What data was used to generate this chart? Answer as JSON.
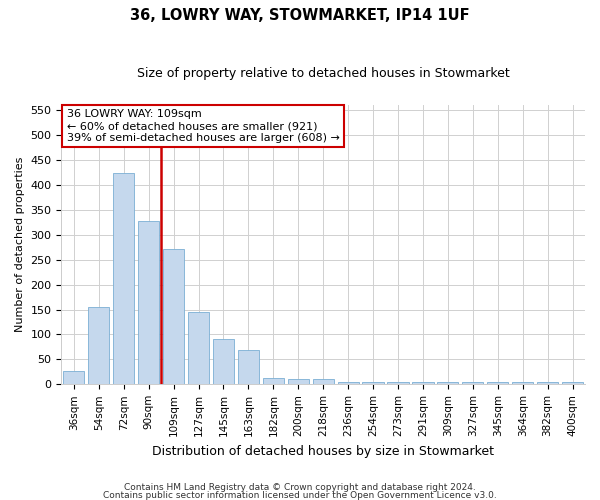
{
  "title1": "36, LOWRY WAY, STOWMARKET, IP14 1UF",
  "title2": "Size of property relative to detached houses in Stowmarket",
  "xlabel": "Distribution of detached houses by size in Stowmarket",
  "ylabel": "Number of detached properties",
  "categories": [
    "36sqm",
    "54sqm",
    "72sqm",
    "90sqm",
    "109sqm",
    "127sqm",
    "145sqm",
    "163sqm",
    "182sqm",
    "200sqm",
    "218sqm",
    "236sqm",
    "254sqm",
    "273sqm",
    "291sqm",
    "309sqm",
    "327sqm",
    "345sqm",
    "364sqm",
    "382sqm",
    "400sqm"
  ],
  "values": [
    27,
    155,
    425,
    327,
    272,
    145,
    90,
    68,
    12,
    10,
    10,
    5,
    4,
    4,
    4,
    4,
    4,
    4,
    4,
    4,
    5
  ],
  "bar_color": "#c5d8ed",
  "bar_edge_color": "#7bafd4",
  "vline_index": 3.5,
  "vline_color": "#cc0000",
  "annotation_line1": "36 LOWRY WAY: 109sqm",
  "annotation_line2": "← 60% of detached houses are smaller (921)",
  "annotation_line3": "39% of semi-detached houses are larger (608) →",
  "annotation_box_color": "#ffffff",
  "annotation_box_edge": "#cc0000",
  "footer1": "Contains HM Land Registry data © Crown copyright and database right 2024.",
  "footer2": "Contains public sector information licensed under the Open Government Licence v3.0.",
  "ylim": [
    0,
    560
  ],
  "yticks": [
    0,
    50,
    100,
    150,
    200,
    250,
    300,
    350,
    400,
    450,
    500,
    550
  ],
  "background_color": "#ffffff",
  "grid_color": "#d0d0d0",
  "title1_fontsize": 10.5,
  "title2_fontsize": 9,
  "ylabel_fontsize": 8,
  "xlabel_fontsize": 9,
  "tick_fontsize": 7.5,
  "ytick_fontsize": 8,
  "annotation_fontsize": 8,
  "footer_fontsize": 6.5
}
